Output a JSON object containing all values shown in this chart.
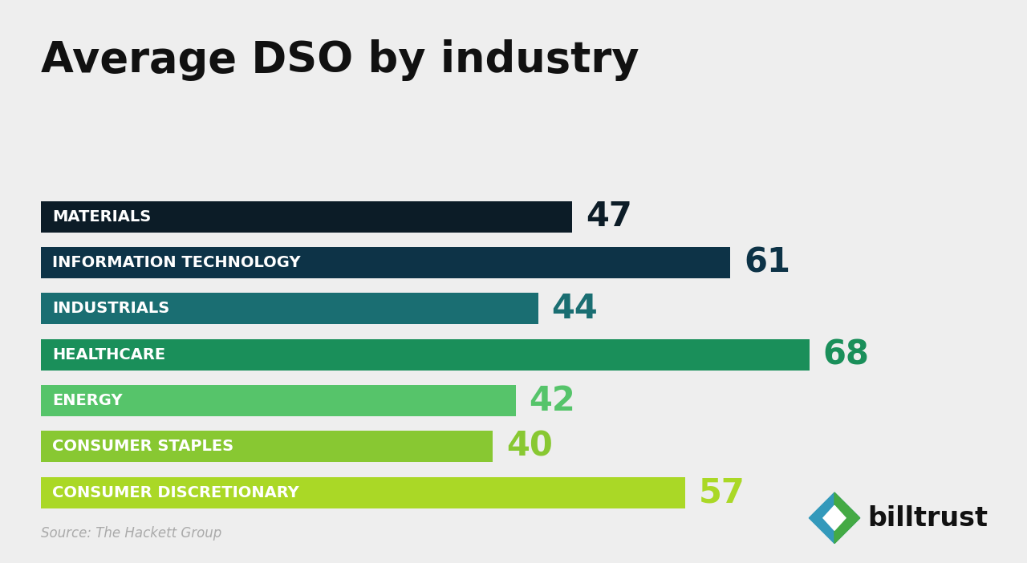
{
  "title": "Average DSO by industry",
  "categories": [
    "MATERIALS",
    "INFORMATION TECHNOLOGY",
    "INDUSTRIALS",
    "HEALTHCARE",
    "ENERGY",
    "CONSUMER STAPLES",
    "CONSUMER DISCRETIONARY"
  ],
  "values": [
    47,
    61,
    44,
    68,
    42,
    40,
    57
  ],
  "bar_colors": [
    "#0c1c27",
    "#0d3347",
    "#1a6e72",
    "#1a8f5a",
    "#56c46a",
    "#88c832",
    "#aad826"
  ],
  "value_colors": [
    "#0c1c27",
    "#0d3347",
    "#1a6e72",
    "#1a8f5a",
    "#56c46a",
    "#88c832",
    "#aad826"
  ],
  "background_color": "#eeeeee",
  "source_text": "Source: The Hackett Group",
  "max_val": 80,
  "bar_height": 0.68,
  "title_fontsize": 38,
  "label_fontsize": 14,
  "value_fontsize": 30
}
